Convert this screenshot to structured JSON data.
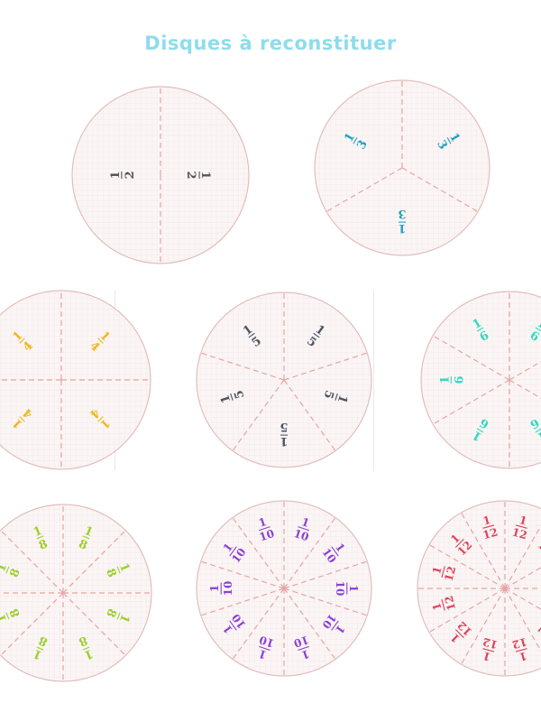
{
  "page": {
    "title": "Disques à reconstituer",
    "title_color": "#8edcec",
    "disc_fill": "#fbf6f5",
    "disc_stroke": "#e2bcbc",
    "cut_line_color": "#e7a3a3"
  },
  "discs": [
    {
      "parts": 2,
      "label": "1/2",
      "color": "#555555"
    },
    {
      "parts": 3,
      "label": "1/3",
      "color": "#21a1c2"
    },
    {
      "parts": 4,
      "label": "1/4",
      "color": "#f2b61b"
    },
    {
      "parts": 5,
      "label": "1/5",
      "color": "#4e5363"
    },
    {
      "parts": 6,
      "label": "1/6",
      "color": "#30d8c0"
    },
    {
      "parts": 8,
      "label": "1/8",
      "color": "#9ccf2a"
    },
    {
      "parts": 10,
      "label": "1/10",
      "color": "#8b3fd6"
    },
    {
      "parts": 12,
      "label": "1/12",
      "color": "#e0405a"
    }
  ]
}
